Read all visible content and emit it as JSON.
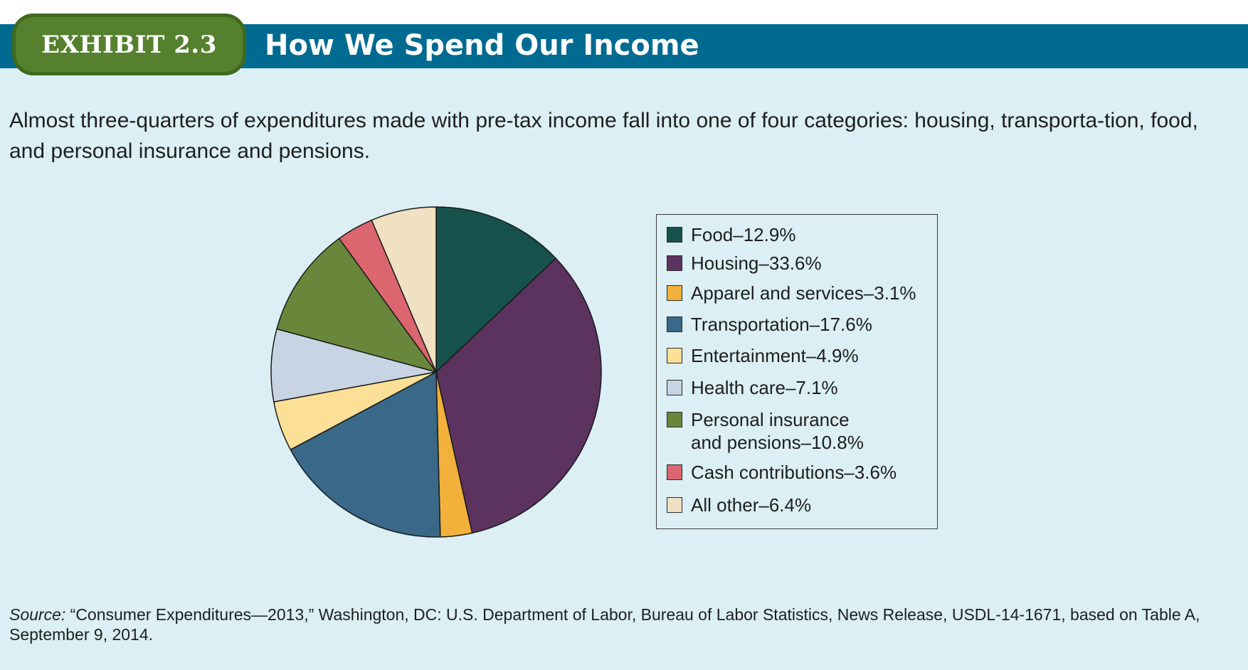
{
  "exhibit": {
    "badge": "EXHIBIT 2.3",
    "title": "How We Spend Our Income"
  },
  "caption": "Almost three-quarters of expenditures made with pre-tax income fall into one of four categories: housing, transporta-tion, food, and personal insurance and pensions.",
  "source": {
    "prefix": "Source:",
    "text": "“Consumer Expenditures—2013,” Washington, DC: U.S. Department of Labor, Bureau of Labor Statistics, News Release, USDL-14-1671, based on Table A, September 9, 2014."
  },
  "colors": {
    "header_bar": "#006a90",
    "badge": "#55802d",
    "panel_background": "#dbeff5"
  },
  "chart_data": {
    "type": "pie",
    "title": "",
    "start": "12 o'clock, clockwise",
    "legend_position": "right",
    "slices": [
      {
        "label": "Food–12.9%",
        "name": "Food",
        "value": 12.9,
        "color": "#16524b"
      },
      {
        "label": "Housing–33.6%",
        "name": "Housing",
        "value": 33.6,
        "color": "#5c325f"
      },
      {
        "label": "Apparel and services–3.1%",
        "name": "Apparel and services",
        "value": 3.1,
        "color": "#f2b13b"
      },
      {
        "label": "Transportation–17.6%",
        "name": "Transportation",
        "value": 17.6,
        "color": "#396888"
      },
      {
        "label": "Entertainment–4.9%",
        "name": "Entertainment",
        "value": 4.9,
        "color": "#fde097"
      },
      {
        "label": "Health care–7.1%",
        "name": "Health care",
        "value": 7.1,
        "color": "#c8d4e3"
      },
      {
        "label": "Personal insurance\nand pensions–10.8%",
        "name": "Personal insurance and pensions",
        "value": 10.8,
        "color": "#69873b"
      },
      {
        "label": "Cash contributions–3.6%",
        "name": "Cash contributions",
        "value": 3.6,
        "color": "#db6670"
      },
      {
        "label": "All other–6.4%",
        "name": "All other",
        "value": 6.4,
        "color": "#f0e1c2"
      }
    ]
  }
}
